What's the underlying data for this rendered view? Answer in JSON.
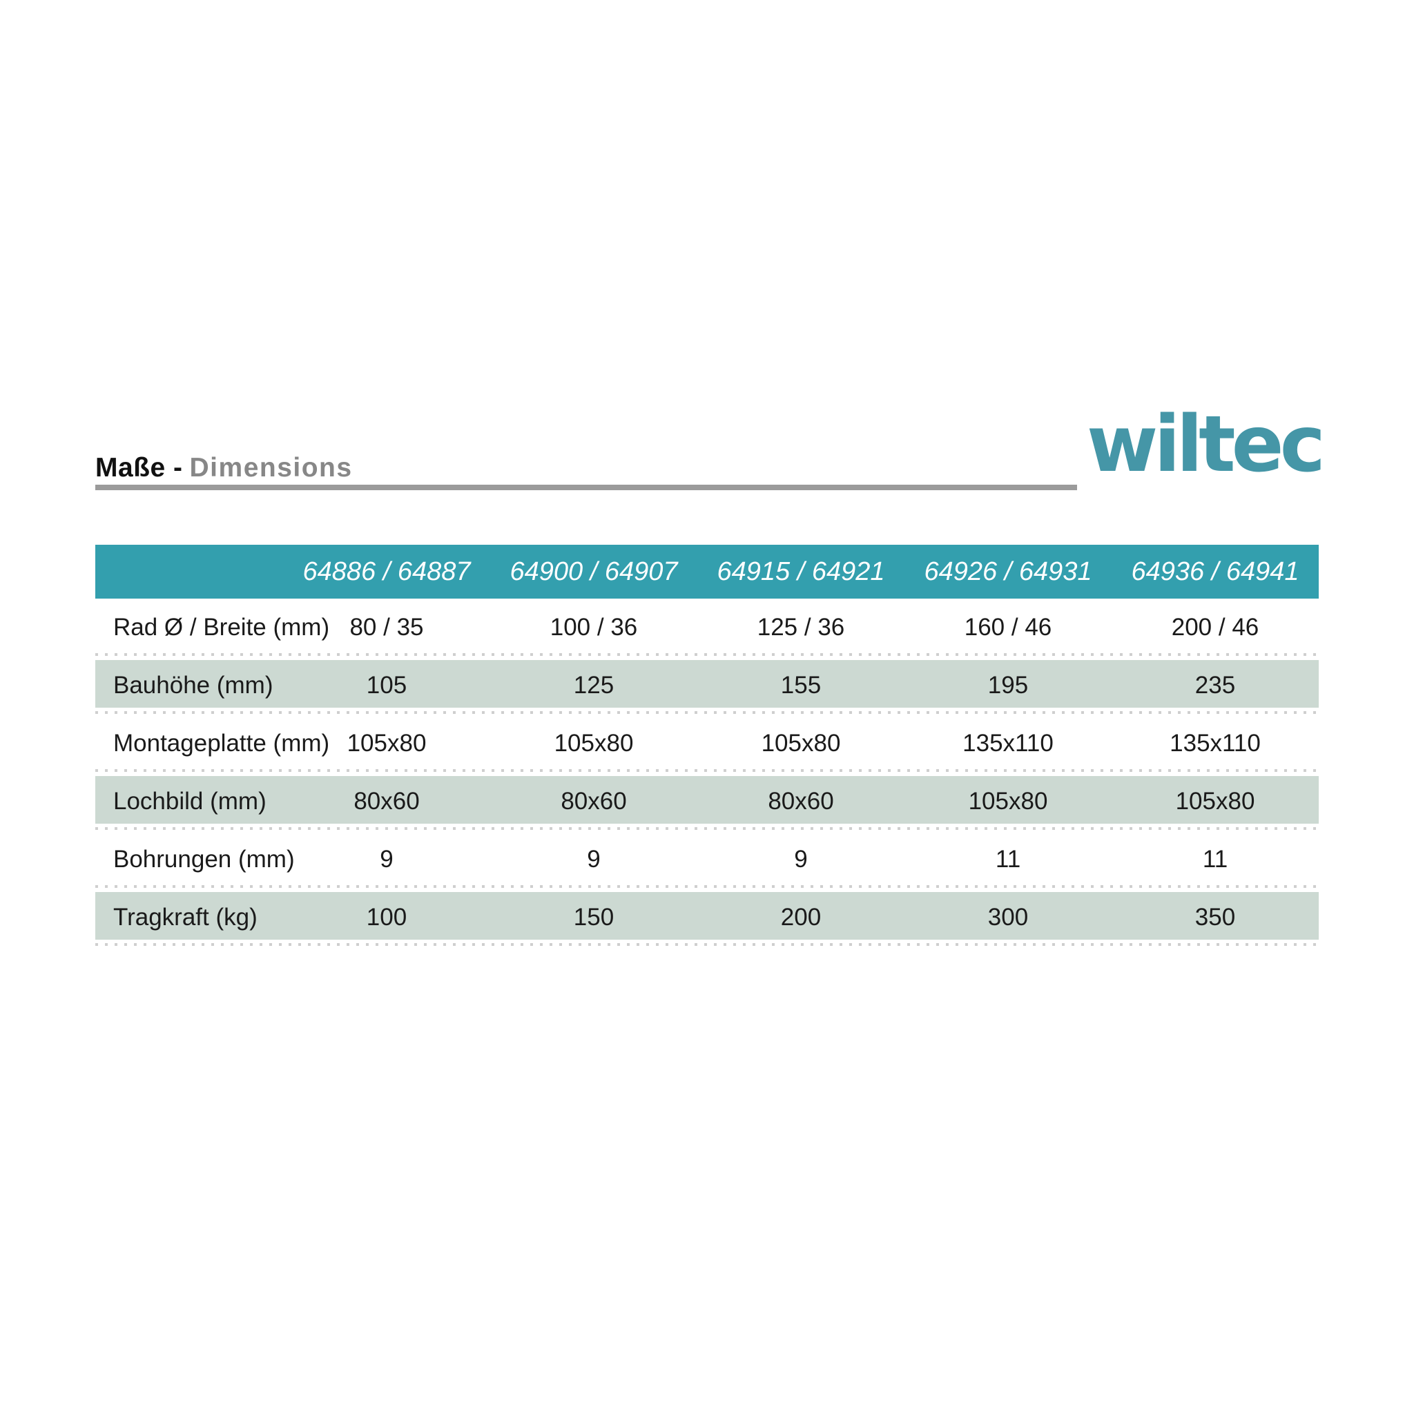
{
  "brand": {
    "logo_text": "wiltec"
  },
  "masthead": {
    "title_de": "Maße -",
    "title_en": "Dimensions"
  },
  "colors": {
    "header_teal": "#339fae",
    "shaded_row_green": "#ccd9d2",
    "logo_teal": "#4596a7",
    "title_gray": "#878787",
    "rule_gray": "#9b9b9b",
    "dotted_line_gray": "#cfcfcf"
  },
  "table": {
    "product_columns": [
      "64886 / 64887",
      "64900 / 64907",
      "64915 / 64921",
      "64926 / 64931",
      "64936 / 64941"
    ],
    "rows": [
      {
        "label": "Rad Ø / Breite (mm)",
        "values": [
          "80 / 35",
          "100 / 36",
          "125 / 36",
          "160 / 46",
          "200 / 46"
        ]
      },
      {
        "label": "Bauhöhe (mm)",
        "values": [
          "105",
          "125",
          "155",
          "195",
          "235"
        ]
      },
      {
        "label": "Montageplatte (mm)",
        "values": [
          "105x80",
          "105x80",
          "105x80",
          "135x110",
          "135x110"
        ]
      },
      {
        "label": "Lochbild (mm)",
        "values": [
          "80x60",
          "80x60",
          "80x60",
          "105x80",
          "105x80"
        ]
      },
      {
        "label": "Bohrungen (mm)",
        "values": [
          "9",
          "9",
          "9",
          "11",
          "11"
        ]
      },
      {
        "label": "Tragkraft (kg)",
        "values": [
          "100",
          "150",
          "200",
          "300",
          "350"
        ]
      }
    ]
  }
}
